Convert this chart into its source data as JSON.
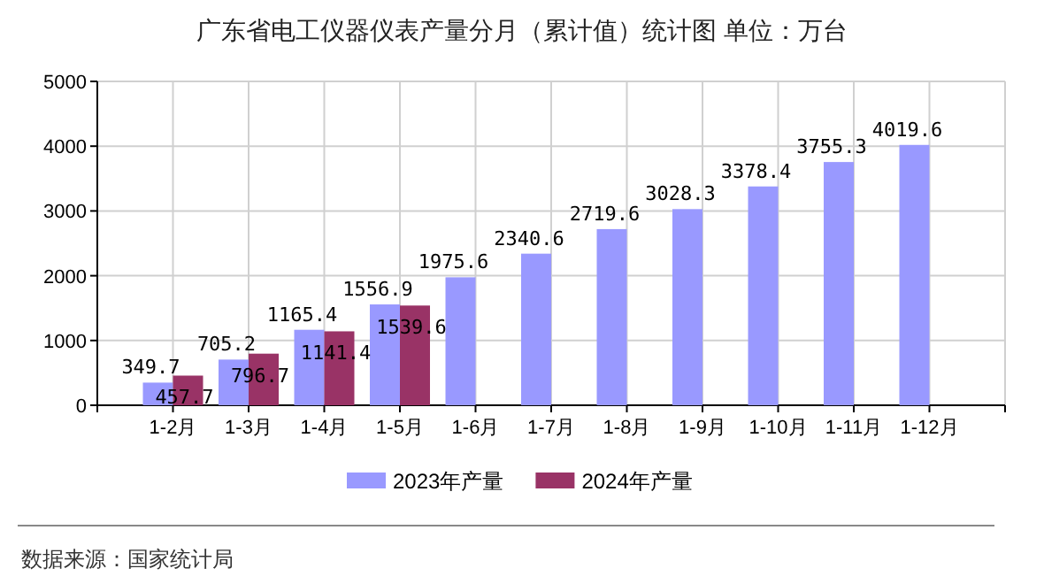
{
  "chart_data": {
    "type": "bar",
    "title": "广东省电工仪器仪表产量分月（累计值）统计图 单位：万台",
    "categories": [
      "1-2月",
      "1-3月",
      "1-4月",
      "1-5月",
      "1-6月",
      "1-7月",
      "1-8月",
      "1-9月",
      "1-10月",
      "1-11月",
      "1-12月"
    ],
    "series": [
      {
        "name": "2023年产量",
        "color": "#9999ff",
        "values": [
          349.7,
          705.2,
          1165.4,
          1556.9,
          1975.6,
          2340.6,
          2719.6,
          3028.3,
          3378.4,
          3755.3,
          4019.6
        ]
      },
      {
        "name": "2024年产量",
        "color": "#993366",
        "values": [
          457.7,
          796.7,
          1141.4,
          1539.6,
          null,
          null,
          null,
          null,
          null,
          null,
          null
        ]
      }
    ],
    "ylim": [
      0,
      5000
    ],
    "yticks": [
      0,
      1000,
      2000,
      3000,
      4000,
      5000
    ],
    "grid": true,
    "legend": "bottom",
    "data_labels": true,
    "annotations": [
      "数据来源：国家统计局"
    ]
  }
}
